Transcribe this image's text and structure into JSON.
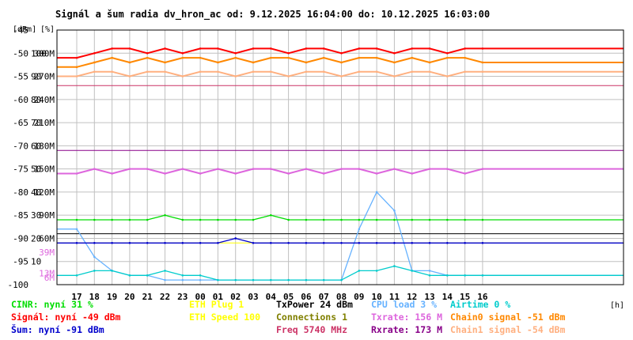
{
  "chart_data": {
    "type": "line",
    "title": "Signál a šum radia dv_hron_ac od: 9.12.2025 16:04:00 do: 10.12.2025 16:03:00",
    "y_unit_labels": [
      "[dBm]",
      "[%]"
    ],
    "x_unit_label": "[h]",
    "y_ticks": {
      "dbm": [
        "-45",
        "-50",
        "-55",
        "-60",
        "-65",
        "-70",
        "-75",
        "-80",
        "-85",
        "-90",
        "-95",
        "-100"
      ],
      "percent": [
        "100",
        "90",
        "80",
        "70",
        "60",
        "50",
        "40",
        "30",
        "20",
        "10"
      ],
      "rate": [
        "300M",
        "270M",
        "240M",
        "210M",
        "180M",
        "150M",
        "120M",
        "90M",
        "60M"
      ],
      "extra": [
        "39M",
        "13M",
        "6M"
      ]
    },
    "x_ticks": [
      "17",
      "18",
      "19",
      "20",
      "21",
      "22",
      "23",
      "00",
      "01",
      "02",
      "03",
      "04",
      "05",
      "06",
      "07",
      "08",
      "09",
      "10",
      "11",
      "12",
      "13",
      "14",
      "15",
      "16"
    ],
    "ylim_dbm": [
      -100,
      -45
    ],
    "grid": true,
    "colors": {
      "signal": "#ff0000",
      "noise": "#0000cc",
      "cinr": "#00dd00",
      "chain0": "#ff8800",
      "chain1": "#ffb080",
      "cpu": "#66b2ff",
      "txrate": "#dd66dd",
      "rxrate": "#880088",
      "airtime": "#00cccc",
      "freq": "#cc3366",
      "eth_speed": "#ffff00",
      "connections": "#808000",
      "txpower": "#000000",
      "grid": "#c0c0c0",
      "axis": "#000000"
    },
    "series": [
      {
        "name": "Signál",
        "key": "signal",
        "values": [
          -51,
          -50,
          -49,
          -49,
          -50,
          -49,
          -50,
          -49,
          -49,
          -50,
          -49,
          -49,
          -50,
          -49,
          -49,
          -50,
          -49,
          -49,
          -50,
          -49,
          -49,
          -50,
          -49,
          -49
        ]
      },
      {
        "name": "Chain0 signal",
        "key": "chain0",
        "values": [
          -53,
          -52,
          -51,
          -52,
          -51,
          -52,
          -51,
          -51,
          -52,
          -51,
          -52,
          -51,
          -51,
          -52,
          -51,
          -52,
          -51,
          -51,
          -52,
          -51,
          -52,
          -51,
          -51,
          -52
        ]
      },
      {
        "name": "Chain1 signal",
        "key": "chain1",
        "values": [
          -55,
          -54,
          -54,
          -55,
          -54,
          -54,
          -55,
          -54,
          -54,
          -55,
          -54,
          -54,
          -55,
          -54,
          -54,
          -55,
          -54,
          -54,
          -55,
          -54,
          -54,
          -55,
          -54,
          -54
        ]
      },
      {
        "name": "Šum",
        "key": "noise",
        "values": [
          -91,
          -91,
          -91,
          -91,
          -91,
          -91,
          -91,
          -91,
          -91,
          -90,
          -91,
          -91,
          -91,
          -91,
          -91,
          -91,
          -91,
          -91,
          -91,
          -91,
          -91,
          -91,
          -91,
          -91
        ]
      },
      {
        "name": "CINR",
        "key": "cinr",
        "values": [
          -86,
          -86,
          -86,
          -86,
          -86,
          -85,
          -86,
          -86,
          -86,
          -86,
          -86,
          -85,
          -86,
          -86,
          -86,
          -86,
          -86,
          -86,
          -86,
          -86,
          -86,
          -86,
          -86,
          -86
        ]
      },
      {
        "name": "Txrate",
        "key": "txrate",
        "values": [
          -76,
          -75,
          -76,
          -75,
          -75,
          -76,
          -75,
          -76,
          -75,
          -76,
          -75,
          -75,
          -76,
          -75,
          -76,
          -75,
          -75,
          -76,
          -75,
          -76,
          -75,
          -75,
          -76,
          -75
        ]
      },
      {
        "name": "CPU load",
        "key": "cpu",
        "values": [
          -88,
          -94,
          -97,
          -98,
          -98,
          -99,
          -99,
          -99,
          -99,
          -99,
          -99,
          -99,
          -99,
          -99,
          -99,
          -99,
          -88,
          -80,
          -84,
          -97,
          -97,
          -98,
          -98,
          -98
        ]
      },
      {
        "name": "Airtime",
        "key": "airtime",
        "values": [
          -98,
          -97,
          -97,
          -98,
          -98,
          -97,
          -98,
          -98,
          -99,
          -99,
          -99,
          -99,
          -99,
          -99,
          -99,
          -99,
          -97,
          -97,
          -96,
          -97,
          -98,
          -98,
          -98,
          -98
        ]
      }
    ],
    "reference_lines": [
      {
        "key": "freq",
        "value": -57
      },
      {
        "key": "rxrate",
        "value": -71
      },
      {
        "key": "eth_speed",
        "value": -91
      },
      {
        "key": "txpower",
        "value": -89
      }
    ],
    "legend": [
      {
        "text": "CINR: nyní 31 %",
        "key": "cinr"
      },
      {
        "text": "ETH Plug 1",
        "key": "eth_speed"
      },
      {
        "text": "TxPower 24 dBm",
        "key": "txpower"
      },
      {
        "text": "CPU load 3 %",
        "key": "cpu"
      },
      {
        "text": "Airtime 0 %",
        "key": "airtime"
      },
      {
        "text": "Signál: nyní -49 dBm",
        "key": "signal"
      },
      {
        "text": "ETH Speed 100",
        "key": "eth_speed"
      },
      {
        "text": "Connections 1",
        "key": "connections"
      },
      {
        "text": "Txrate: 156 M",
        "key": "txrate"
      },
      {
        "text": "Chain0 signal -51 dBm",
        "key": "chain0"
      },
      {
        "text": "Šum: nyní -91 dBm",
        "key": "noise"
      },
      {
        "text": "Freq 5740 MHz",
        "key": "freq"
      },
      {
        "text": "Rxrate: 173 M",
        "key": "rxrate"
      },
      {
        "text": "Chain1 signal -54 dBm",
        "key": "chain1"
      }
    ]
  }
}
